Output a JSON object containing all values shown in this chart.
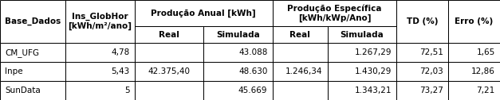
{
  "figsize": [
    6.27,
    1.26
  ],
  "dpi": 100,
  "col_widths_raw": [
    95,
    100,
    100,
    100,
    80,
    100,
    75,
    75
  ],
  "row_heights_raw": [
    32,
    20,
    23,
    23,
    23
  ],
  "header0": {
    "0": {
      "text": "Base_Dados",
      "span_rows": 2,
      "ha": "center",
      "bold": true
    },
    "1": {
      "text": "Ins_GlobHor\n[kWh/m²/ano]",
      "span_rows": 2,
      "ha": "center",
      "bold": true
    },
    "23": {
      "text": "Produção Anual [kWh]",
      "span_cols": [
        2,
        4
      ],
      "ha": "center",
      "bold": true
    },
    "45": {
      "text": "Produção Específica\n[kWh/kWp/Ano]",
      "span_cols": [
        4,
        6
      ],
      "ha": "center",
      "bold": true
    },
    "6": {
      "text": "TD (%)",
      "span_rows": 2,
      "ha": "center",
      "bold": true
    },
    "7": {
      "text": "Erro (%)",
      "span_rows": 2,
      "ha": "center",
      "bold": true
    }
  },
  "header1": {
    "2": {
      "text": "Real",
      "ha": "center",
      "bold": true
    },
    "3": {
      "text": "Simulada",
      "ha": "center",
      "bold": true
    },
    "4": {
      "text": "Real",
      "ha": "center",
      "bold": true
    },
    "5": {
      "text": "Simulada",
      "ha": "center",
      "bold": true
    }
  },
  "data_rows": [
    [
      "CM_UFG",
      "4,78",
      "",
      "43.088",
      "",
      "1.267,29",
      "72,51",
      "1,65"
    ],
    [
      "Inpe",
      "5,43",
      "42.375,40",
      "48.630",
      "1.246,34",
      "1.430,29",
      "72,03",
      "12,86"
    ],
    [
      "SunData",
      "5",
      "",
      "45.669",
      "",
      "1.343,21",
      "73,27",
      "7,21"
    ]
  ],
  "span_col2_text": "42.375,40",
  "span_col4_text": "1.246,34",
  "col_aligns": [
    "left",
    "right",
    "center",
    "right",
    "right",
    "right",
    "right",
    "right"
  ],
  "fontsize": 7.5,
  "bg": "#ffffff",
  "border_color": "#000000",
  "border_lw": 0.7
}
